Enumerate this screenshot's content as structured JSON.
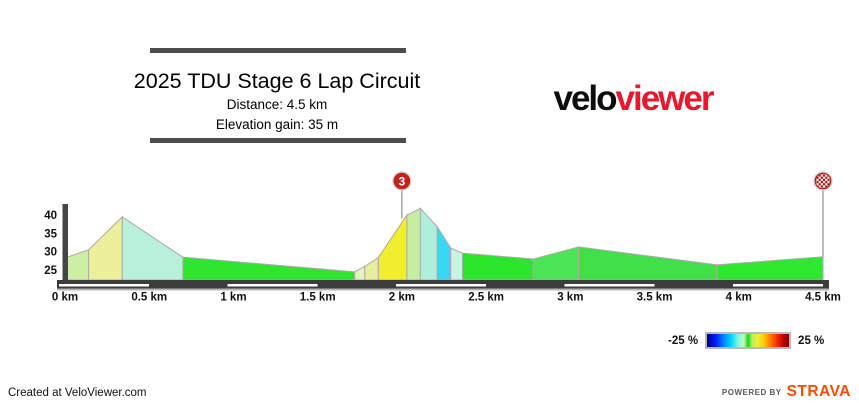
{
  "header": {
    "title": "2025 TDU Stage 6 Lap Circuit",
    "distance": "Distance: 4.5 km",
    "elevation_gain": "Elevation gain: 35 m"
  },
  "logo": {
    "black_part": "velo",
    "red_part": "viewer",
    "red_color": "#e8192d"
  },
  "legend": {
    "min_label": "-25 %",
    "max_label": "25 %"
  },
  "footer": {
    "credit": "Created at VeloViewer.com",
    "powered_by": "POWERED BY",
    "strava": "STRAVA",
    "strava_color": "#fc4c02"
  },
  "chart_data": {
    "type": "area",
    "title": "2025 TDU Stage 6 Lap Circuit elevation profile",
    "x_unit": "km",
    "y_unit": "m",
    "xlim": [
      0,
      4.5
    ],
    "ylim": [
      22.3,
      43
    ],
    "grid": false,
    "y_ticks": [
      40,
      35,
      30,
      25
    ],
    "x_ticks": [
      {
        "km": 0,
        "label": "0 km"
      },
      {
        "km": 0.5,
        "label": "0.5 km"
      },
      {
        "km": 1,
        "label": "1 km"
      },
      {
        "km": 1.5,
        "label": "1.5 km"
      },
      {
        "km": 2,
        "label": "2 km"
      },
      {
        "km": 2.5,
        "label": "2.5 km"
      },
      {
        "km": 3,
        "label": "3 km"
      },
      {
        "km": 3.5,
        "label": "3.5 km"
      },
      {
        "km": 4,
        "label": "4 km"
      },
      {
        "km": 4.5,
        "label": "4.5 km"
      }
    ],
    "gradient_legend": {
      "min": "-25 %",
      "max": "25 %"
    },
    "segments": [
      {
        "from_km": 0.0,
        "to_km": 0.14,
        "from_m": 28.3,
        "to_m": 30.5,
        "color": "#cdefa5"
      },
      {
        "from_km": 0.14,
        "to_km": 0.34,
        "from_m": 30.5,
        "to_m": 39.5,
        "color": "#ecef9b"
      },
      {
        "from_km": 0.34,
        "to_km": 0.7,
        "from_m": 39.5,
        "to_m": 28.5,
        "color": "#b9f0dc"
      },
      {
        "from_km": 0.7,
        "to_km": 1.72,
        "from_m": 28.5,
        "to_m": 24.5,
        "color": "#2ee62e"
      },
      {
        "from_km": 1.72,
        "to_km": 1.78,
        "from_m": 24.5,
        "to_m": 26.0,
        "color": "#e6f2c6"
      },
      {
        "from_km": 1.78,
        "to_km": 1.86,
        "from_m": 26.0,
        "to_m": 28.4,
        "color": "#e9ee9c"
      },
      {
        "from_km": 1.86,
        "to_km": 2.03,
        "from_m": 28.4,
        "to_m": 40.0,
        "color": "#f0ee2e"
      },
      {
        "from_km": 2.03,
        "to_km": 2.11,
        "from_m": 40.0,
        "to_m": 41.8,
        "color": "#c6eda2"
      },
      {
        "from_km": 2.11,
        "to_km": 2.21,
        "from_m": 41.8,
        "to_m": 36.8,
        "color": "#aeeedd"
      },
      {
        "from_km": 2.21,
        "to_km": 2.29,
        "from_m": 36.8,
        "to_m": 31.0,
        "color": "#38d7f3"
      },
      {
        "from_km": 2.29,
        "to_km": 2.36,
        "from_m": 31.0,
        "to_m": 29.6,
        "color": "#c9f3e3"
      },
      {
        "from_km": 2.36,
        "to_km": 2.78,
        "from_m": 29.6,
        "to_m": 28.0,
        "color": "#2ce62c"
      },
      {
        "from_km": 2.78,
        "to_km": 3.05,
        "from_m": 28.0,
        "to_m": 31.3,
        "color": "#4ae455"
      },
      {
        "from_km": 3.05,
        "to_km": 3.87,
        "from_m": 31.3,
        "to_m": 26.4,
        "color": "#3fe04a"
      },
      {
        "from_km": 3.87,
        "to_km": 4.5,
        "from_m": 26.4,
        "to_m": 28.6,
        "color": "#2ee82e"
      }
    ],
    "markers": [
      {
        "type": "climb-category",
        "label": "3",
        "km": 2.0,
        "color": "#c1231a"
      },
      {
        "type": "finish-checkered",
        "label": "",
        "km": 4.5,
        "color": "#b31412"
      }
    ],
    "scale_bar_dashes_km": [
      [
        0,
        0.5
      ],
      [
        1,
        1.5
      ],
      [
        2,
        2.5
      ],
      [
        3,
        3.5
      ],
      [
        4,
        4.5
      ]
    ]
  }
}
